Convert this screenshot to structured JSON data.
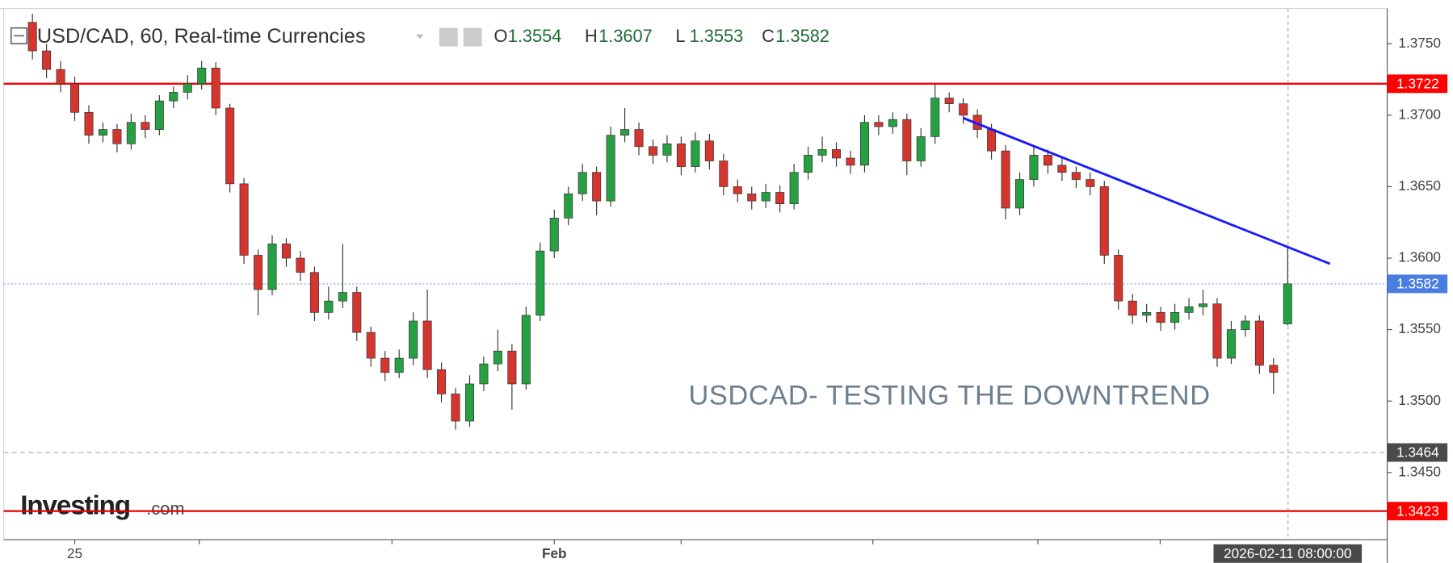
{
  "chart_data": {
    "type": "candlestick",
    "title": "USD/CAD, 60, Real-time Currencies",
    "ohlc": [
      {
        "label": "O",
        "value": 1.3554
      },
      {
        "label": "H",
        "value": 1.3607
      },
      {
        "label": "L",
        "value": 1.3553
      },
      {
        "label": "C",
        "value": 1.3582
      }
    ],
    "annotation": "USDCAD- TESTING THE DOWNTREND",
    "watermark": [
      "Investing",
      ".com"
    ],
    "categories": [
      null,
      null,
      null,
      "25",
      null,
      null,
      null,
      null,
      null,
      null,
      null,
      null,
      null,
      null,
      null,
      null,
      null,
      null,
      null,
      null,
      null,
      null,
      null,
      null,
      null,
      null,
      null,
      null,
      null,
      null,
      null,
      null,
      null,
      null,
      null,
      null,
      null,
      "Feb",
      null,
      null,
      null,
      null,
      null,
      null,
      null,
      null,
      null,
      null,
      null,
      null,
      null,
      null,
      null,
      null,
      null,
      null,
      null,
      null,
      null,
      null,
      null,
      null,
      null,
      null,
      null,
      null,
      null,
      null,
      null,
      null,
      null,
      null,
      null,
      null,
      null,
      null,
      null,
      null,
      null,
      null,
      null,
      null,
      null,
      null,
      null,
      null,
      null,
      null,
      null,
      "2026-02-11 08:00:00"
    ],
    "open": [
      1.3765,
      1.3745,
      1.3732,
      1.3722,
      1.3702,
      1.3686,
      1.369,
      1.368,
      1.3695,
      1.369,
      1.371,
      1.3716,
      1.3722,
      1.3733,
      1.3705,
      1.3652,
      1.3602,
      1.3578,
      1.361,
      1.36,
      1.359,
      1.3562,
      1.357,
      1.3576,
      1.3548,
      1.353,
      1.352,
      1.353,
      1.3556,
      1.3522,
      1.3505,
      1.3486,
      1.3512,
      1.3526,
      1.3535,
      1.3512,
      1.356,
      1.3605,
      1.3628,
      1.3645,
      1.366,
      1.364,
      1.3686,
      1.369,
      1.3678,
      1.3672,
      1.368,
      1.3664,
      1.3682,
      1.3668,
      1.365,
      1.3645,
      1.364,
      1.3646,
      1.3638,
      1.366,
      1.3672,
      1.3676,
      1.367,
      1.3665,
      1.3695,
      1.3692,
      1.3697,
      1.3668,
      1.3685,
      1.3712,
      1.3708,
      1.37,
      1.369,
      1.3675,
      1.3635,
      1.3655,
      1.3672,
      1.3665,
      1.366,
      1.3655,
      1.365,
      1.3602,
      1.357,
      1.356,
      1.3562,
      1.3555,
      1.3562,
      1.3566,
      1.3568,
      1.353,
      1.355,
      1.3556,
      1.3525,
      1.3554
    ],
    "high": [
      1.3771,
      1.375,
      1.3738,
      1.3727,
      1.3707,
      1.3695,
      1.3694,
      1.3701,
      1.37,
      1.3714,
      1.372,
      1.3728,
      1.3738,
      1.3737,
      1.3708,
      1.3656,
      1.3606,
      1.3616,
      1.3614,
      1.3605,
      1.3594,
      1.358,
      1.361,
      1.358,
      1.3552,
      1.3535,
      1.3536,
      1.3562,
      1.3578,
      1.3527,
      1.3509,
      1.3518,
      1.3531,
      1.355,
      1.354,
      1.3566,
      1.3611,
      1.3634,
      1.365,
      1.3666,
      1.3664,
      1.3692,
      1.3705,
      1.3695,
      1.3683,
      1.3686,
      1.3685,
      1.3688,
      1.3687,
      1.3673,
      1.3655,
      1.365,
      1.3652,
      1.3651,
      1.3666,
      1.3678,
      1.3685,
      1.3681,
      1.3675,
      1.37,
      1.37,
      1.3702,
      1.3701,
      1.3691,
      1.3722,
      1.3716,
      1.3712,
      1.3704,
      1.3694,
      1.3679,
      1.366,
      1.3678,
      1.3676,
      1.367,
      1.3664,
      1.366,
      1.3654,
      1.3606,
      1.3575,
      1.3568,
      1.3566,
      1.3568,
      1.3572,
      1.3578,
      1.3572,
      1.3556,
      1.356,
      1.356,
      1.353,
      1.3607
    ],
    "low": [
      1.3739,
      1.3726,
      1.3716,
      1.3696,
      1.368,
      1.3681,
      1.3674,
      1.3676,
      1.3684,
      1.3686,
      1.3705,
      1.3711,
      1.3718,
      1.37,
      1.3646,
      1.3596,
      1.356,
      1.3574,
      1.3594,
      1.3584,
      1.3556,
      1.3557,
      1.3565,
      1.3542,
      1.3524,
      1.3514,
      1.3516,
      1.3525,
      1.3516,
      1.3499,
      1.348,
      1.3482,
      1.3507,
      1.3521,
      1.3494,
      1.3508,
      1.3556,
      1.36,
      1.3623,
      1.364,
      1.363,
      1.3636,
      1.3681,
      1.3672,
      1.3666,
      1.3667,
      1.3658,
      1.366,
      1.3662,
      1.3644,
      1.3639,
      1.3634,
      1.3635,
      1.3632,
      1.3634,
      1.3655,
      1.3667,
      1.3664,
      1.3659,
      1.366,
      1.3686,
      1.3687,
      1.3658,
      1.3664,
      1.368,
      1.3702,
      1.3694,
      1.3684,
      1.3669,
      1.3627,
      1.363,
      1.365,
      1.3659,
      1.3654,
      1.3649,
      1.3644,
      1.3596,
      1.3564,
      1.3554,
      1.3555,
      1.3549,
      1.355,
      1.3557,
      1.356,
      1.3524,
      1.3526,
      1.3545,
      1.3519,
      1.3505,
      1.3553
    ],
    "close": [
      1.3745,
      1.3732,
      1.3722,
      1.3702,
      1.3686,
      1.369,
      1.368,
      1.3695,
      1.369,
      1.371,
      1.3716,
      1.3722,
      1.3733,
      1.3705,
      1.3652,
      1.3602,
      1.3578,
      1.361,
      1.36,
      1.359,
      1.3562,
      1.357,
      1.3576,
      1.3548,
      1.353,
      1.352,
      1.353,
      1.3556,
      1.3522,
      1.3505,
      1.3486,
      1.3512,
      1.3526,
      1.3535,
      1.3512,
      1.356,
      1.3605,
      1.3628,
      1.3645,
      1.366,
      1.364,
      1.3686,
      1.369,
      1.3678,
      1.3672,
      1.368,
      1.3664,
      1.3682,
      1.3668,
      1.365,
      1.3645,
      1.364,
      1.3646,
      1.3638,
      1.366,
      1.3672,
      1.3676,
      1.367,
      1.3665,
      1.3695,
      1.3692,
      1.3697,
      1.3668,
      1.3685,
      1.3712,
      1.3708,
      1.37,
      1.369,
      1.3675,
      1.3635,
      1.3655,
      1.3672,
      1.3665,
      1.366,
      1.3655,
      1.365,
      1.3602,
      1.357,
      1.356,
      1.3562,
      1.3555,
      1.3562,
      1.3566,
      1.3568,
      1.353,
      1.355,
      1.3556,
      1.3525,
      1.352,
      1.3582
    ],
    "up_color": "#26a042",
    "down_color": "#d4352f",
    "trendline": {
      "x": [
        66,
        92
      ],
      "values": [
        1.3698,
        1.3596
      ],
      "color": "#1a1aff"
    },
    "hlines": [
      {
        "value": 1.3722,
        "color": "#ff0000",
        "label_color": "#ff0000",
        "style": "solid"
      },
      {
        "value": 1.3423,
        "color": "#e00000",
        "label_color": "#ff0000",
        "style": "solid"
      },
      {
        "value": 1.3582,
        "color": "#8aa6ee",
        "label_color": "#4a7de2",
        "style": "dotted"
      },
      {
        "value": 1.3464,
        "color": "#b0b0b0",
        "label_color": "#4a4a4a",
        "style": "dashed"
      }
    ],
    "ylim": [
      1.3403,
      1.3774
    ],
    "yticks": [
      {
        "value": 1.345,
        "label": "1.3450"
      },
      {
        "value": 1.35,
        "label": "1.3500"
      },
      {
        "value": 1.355,
        "label": "1.3550"
      },
      {
        "value": 1.36,
        "label": "1.3600"
      },
      {
        "value": 1.365,
        "label": "1.3650"
      },
      {
        "value": 1.37,
        "label": "1.3700"
      },
      {
        "value": 1.375,
        "label": "1.3750"
      }
    ],
    "grid": false
  }
}
